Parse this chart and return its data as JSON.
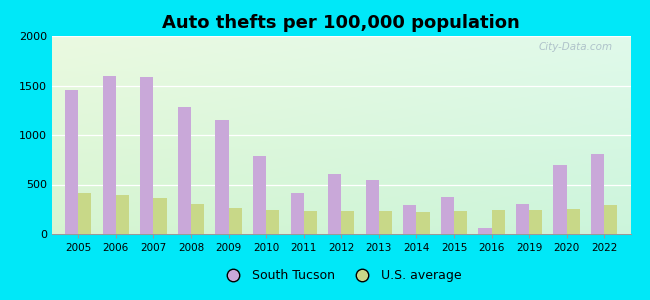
{
  "title": "Auto thefts per 100,000 population",
  "years": [
    2005,
    2006,
    2007,
    2008,
    2009,
    2010,
    2011,
    2012,
    2013,
    2014,
    2015,
    2016,
    2019,
    2020,
    2022
  ],
  "south_tucson": [
    1450,
    1600,
    1590,
    1280,
    1150,
    790,
    415,
    605,
    550,
    290,
    370,
    65,
    305,
    700,
    810
  ],
  "us_average": [
    415,
    390,
    360,
    300,
    265,
    240,
    230,
    230,
    230,
    220,
    230,
    240,
    240,
    250,
    290
  ],
  "south_tucson_color": "#c9a8d9",
  "us_average_color": "#c8d888",
  "outer_background": "#00e8f8",
  "ylim": [
    0,
    2000
  ],
  "yticks": [
    0,
    500,
    1000,
    1500,
    2000
  ],
  "bar_width": 0.35,
  "legend_south_tucson": "South Tucson",
  "legend_us_average": "U.S. average",
  "watermark": "City-Data.com"
}
